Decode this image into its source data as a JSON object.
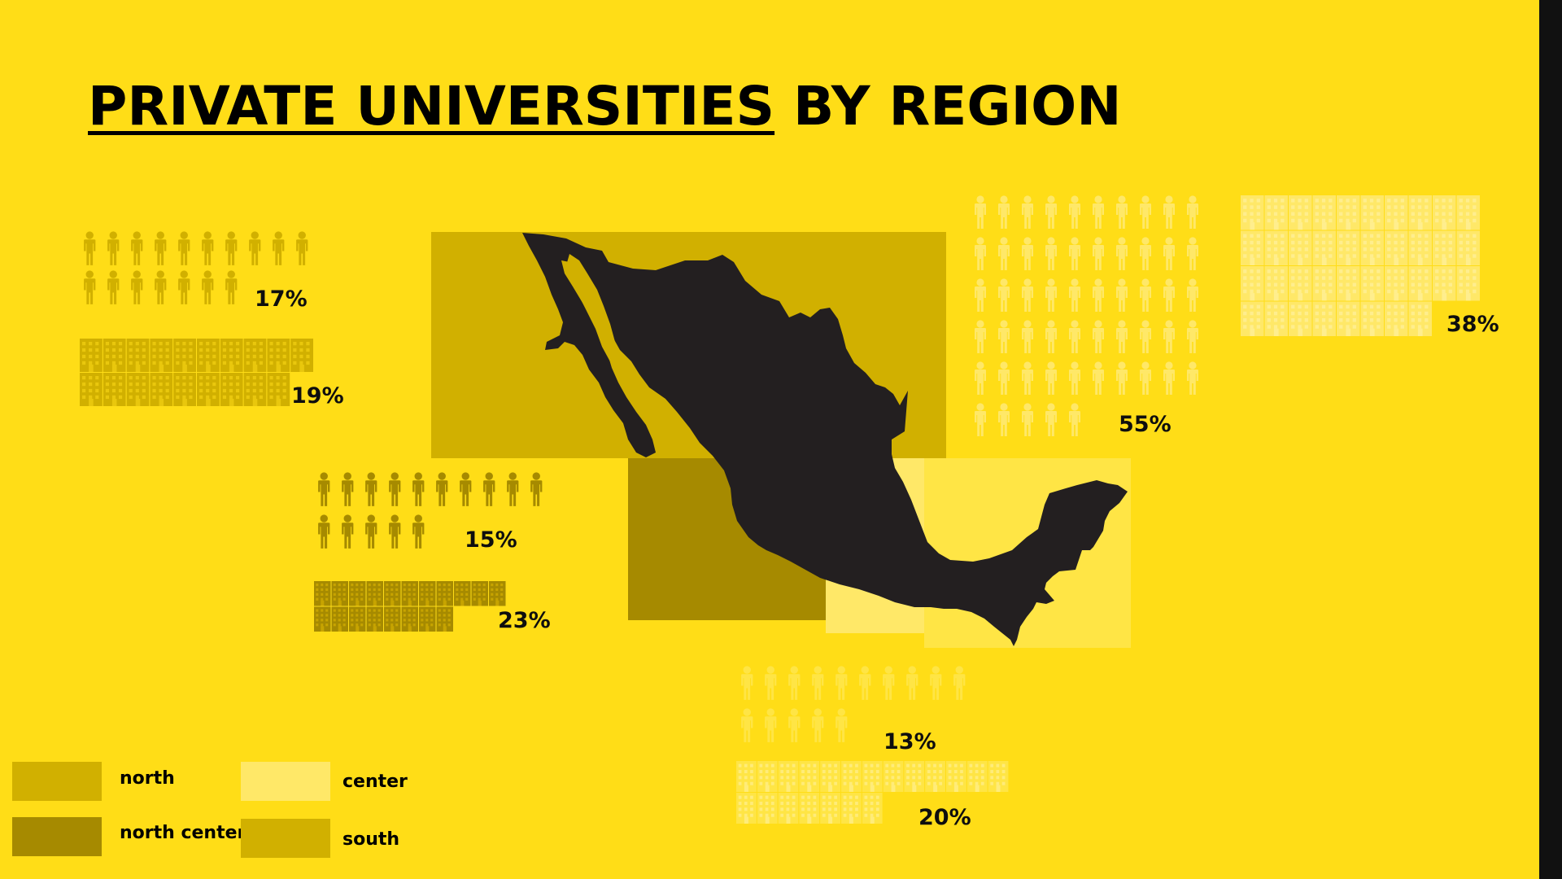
{
  "title": {
    "underlined": "PRIVATE UNIVERSITIES",
    "rest": " BY REGION"
  },
  "colors": {
    "background": "#FFDD17",
    "north": "#D1B000",
    "north_center": "#A68A00",
    "center": "#FFE868",
    "south": "#FFE545",
    "map": "#231F20",
    "text": "#0E0E0E"
  },
  "chart_data": {
    "type": "pictogram",
    "units": {
      "person": "students",
      "building": "private universities"
    },
    "series": [
      {
        "region": "north",
        "students_pct": 17,
        "universities_pct": 19,
        "students_label": "17%",
        "universities_label": "19%"
      },
      {
        "region": "north center",
        "students_pct": 15,
        "universities_pct": 23,
        "students_label": "15%",
        "universities_label": "23%"
      },
      {
        "region": "center",
        "students_pct": 55,
        "universities_pct": 38,
        "students_label": "55%",
        "universities_label": "38%"
      },
      {
        "region": "south",
        "students_pct": 13,
        "universities_pct": 20,
        "students_label": "13%",
        "universities_label": "20%"
      }
    ]
  },
  "legend": [
    {
      "label": "north"
    },
    {
      "label": "north center"
    },
    {
      "label": "center"
    },
    {
      "label": "south"
    }
  ]
}
